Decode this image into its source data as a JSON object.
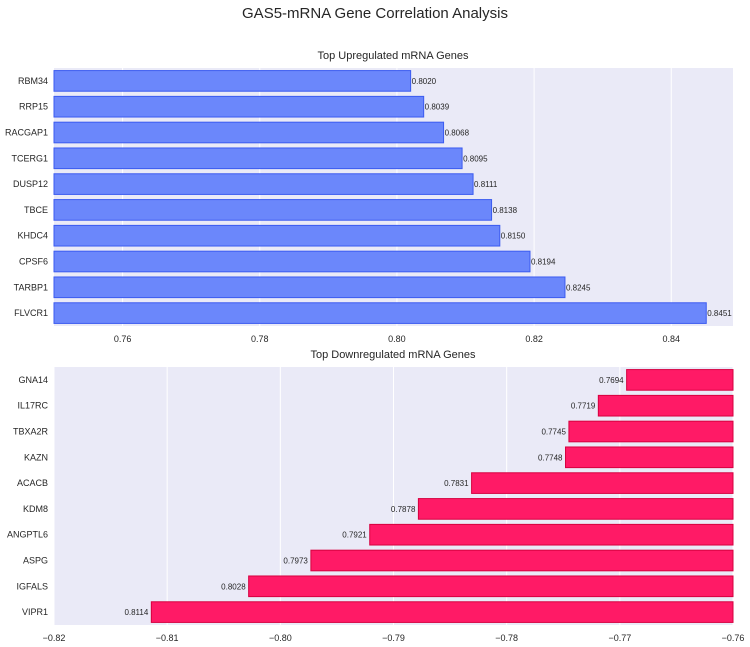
{
  "title": "GAS5-mRNA Gene Correlation Analysis",
  "colors": {
    "up": "#6b87fb",
    "up_edge": "#3b5bf0",
    "down": "#ff1a66",
    "down_edge": "#d6003f",
    "panel_bg": "#eaeaf7"
  },
  "chart_data": [
    {
      "type": "bar",
      "orientation": "horizontal",
      "title": "Top Upregulated mRNA Genes",
      "categories": [
        "RBM34",
        "RRP15",
        "RACGAP1",
        "TCERG1",
        "DUSP12",
        "TBCE",
        "KHDC4",
        "CPSF6",
        "TARBP1",
        "FLVCR1"
      ],
      "values": [
        0.802,
        0.8039,
        0.8068,
        0.8095,
        0.8111,
        0.8138,
        0.815,
        0.8194,
        0.8245,
        0.8451
      ],
      "value_labels": [
        "0.8020",
        "0.8039",
        "0.8068",
        "0.8095",
        "0.8111",
        "0.8138",
        "0.8150",
        "0.8194",
        "0.8245",
        "0.8451"
      ],
      "xlim": [
        0.75,
        0.849
      ],
      "xticks": [
        0.76,
        0.78,
        0.8,
        0.82,
        0.84
      ],
      "xtick_labels": [
        "0.76",
        "0.78",
        "0.80",
        "0.82",
        "0.84"
      ],
      "grid": true
    },
    {
      "type": "bar",
      "orientation": "horizontal",
      "title": "Top Downregulated mRNA Genes",
      "categories": [
        "GNA14",
        "IL17RC",
        "TBXA2R",
        "KAZN",
        "ACACB",
        "KDM8",
        "ANGPTL6",
        "ASPG",
        "IGFALS",
        "VIPR1"
      ],
      "values": [
        -0.7694,
        -0.7719,
        -0.7745,
        -0.7748,
        -0.7831,
        -0.7878,
        -0.7921,
        -0.7973,
        -0.8028,
        -0.8114
      ],
      "value_labels": [
        "-0.7694",
        "-0.7719",
        "-0.7745",
        "-0.7748",
        "-0.7831",
        "-0.7878",
        "-0.7921",
        "-0.7973",
        "-0.8028",
        "-0.8114"
      ],
      "xlim": [
        -0.82,
        -0.76
      ],
      "xticks": [
        -0.82,
        -0.81,
        -0.8,
        -0.79,
        -0.78,
        -0.77,
        -0.76
      ],
      "xtick_labels": [
        "−0.82",
        "−0.81",
        "−0.80",
        "−0.79",
        "−0.78",
        "−0.77",
        "−0.76"
      ],
      "grid": true
    }
  ]
}
